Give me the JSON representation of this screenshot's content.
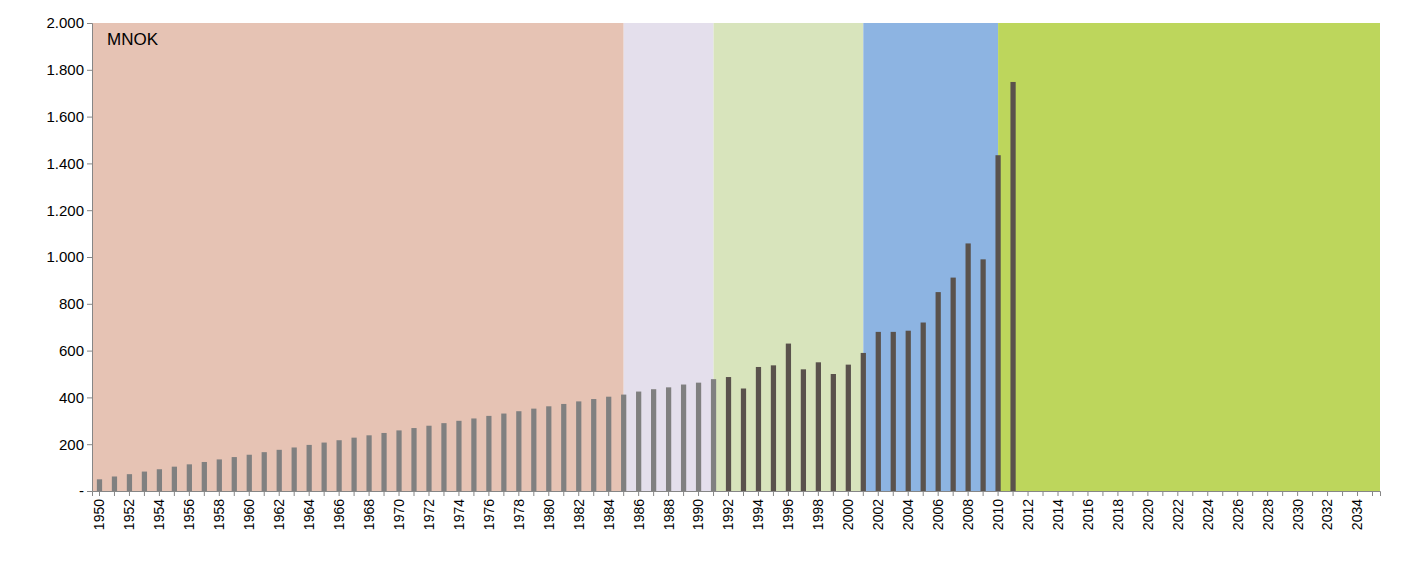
{
  "chart_data": {
    "type": "bar",
    "ylabel": "MNOK",
    "categories": [
      "1950",
      null,
      "1952",
      null,
      "1954",
      null,
      "1956",
      null,
      "1958",
      null,
      "1960",
      null,
      "1962",
      null,
      "1964",
      null,
      "1966",
      null,
      "1968",
      null,
      "1970",
      null,
      "1972",
      null,
      "1974",
      null,
      "1976",
      null,
      "1978",
      null,
      "1980",
      null,
      "1982",
      null,
      "1984",
      null,
      "1986",
      null,
      "1988",
      null,
      "1990",
      null,
      "1992",
      null,
      "1994",
      null,
      "1996",
      null,
      "1998",
      null,
      "2000",
      null,
      "2002",
      null,
      "2004",
      null,
      "2006",
      null,
      "2008",
      null,
      "2010",
      null,
      "2012",
      null,
      "2014",
      null,
      "2016",
      null,
      "2018",
      null,
      "2020",
      null,
      "2022",
      null,
      "2024",
      null,
      "2026",
      null,
      "2028",
      null,
      "2030",
      null,
      "2032",
      null,
      "2034",
      null
    ],
    "values": [
      50,
      62,
      72,
      83,
      93,
      104,
      114,
      124,
      135,
      145,
      155,
      166,
      176,
      186,
      197,
      207,
      217,
      228,
      238,
      248,
      259,
      269,
      279,
      290,
      300,
      310,
      321,
      331,
      341,
      352,
      362,
      372,
      383,
      393,
      403,
      412,
      425,
      435,
      443,
      455,
      463,
      478,
      487,
      438,
      530,
      537,
      630,
      520,
      550,
      500,
      540,
      590,
      680,
      680,
      685,
      720,
      850,
      912,
      1058,
      990,
      1435,
      1748,
      null,
      null,
      null,
      null,
      null,
      null,
      null,
      null,
      null,
      null,
      null,
      null,
      null,
      null,
      null,
      null,
      null,
      null,
      null,
      null,
      null,
      null,
      null,
      null
    ],
    "colors": [
      "#808080",
      "#808080",
      "#808080",
      "#808080",
      "#808080",
      "#808080",
      "#808080",
      "#808080",
      "#808080",
      "#808080",
      "#808080",
      "#808080",
      "#808080",
      "#808080",
      "#808080",
      "#808080",
      "#808080",
      "#808080",
      "#808080",
      "#808080",
      "#808080",
      "#808080",
      "#808080",
      "#808080",
      "#808080",
      "#808080",
      "#808080",
      "#808080",
      "#808080",
      "#808080",
      "#808080",
      "#808080",
      "#808080",
      "#808080",
      "#808080",
      "#808080",
      "#808080",
      "#808080",
      "#808080",
      "#808080",
      "#808080",
      "#808080",
      "#5a524c",
      "#5a524c",
      "#5a524c",
      "#5a524c",
      "#5a524c",
      "#5a524c",
      "#5a524c",
      "#5a524c",
      "#5a524c",
      "#5a524c",
      "#5a524c",
      "#5a524c",
      "#5a524c",
      "#5a524c",
      "#5a524c",
      "#5a524c",
      "#5a524c",
      "#5a524c",
      "#5a524c",
      "#5a524c",
      null,
      null,
      null,
      null,
      null,
      null,
      null,
      null,
      null,
      null,
      null,
      null,
      null,
      null,
      null,
      null,
      null,
      null,
      null,
      null,
      null,
      null,
      null,
      null
    ],
    "ylim": [
      0,
      2000
    ],
    "yticks": [
      {
        "value": 0,
        "label": "-"
      },
      200,
      400,
      600,
      800,
      {
        "value": 1000,
        "label": "1.000"
      },
      {
        "value": 1200,
        "label": "1.200"
      },
      {
        "value": 1400,
        "label": "1.400"
      },
      {
        "value": 1600,
        "label": "1.600"
      },
      {
        "value": 1800,
        "label": "1.800"
      },
      {
        "value": 2000,
        "label": "2.000"
      }
    ],
    "grid": false,
    "bands": [
      {
        "from": 0,
        "to": 35,
        "color": "#e6c3b4"
      },
      {
        "from": 35,
        "to": 41,
        "color": "#e4dfec"
      },
      {
        "from": 41,
        "to": 51,
        "color": "#d8e4bc"
      },
      {
        "from": 51,
        "to": 60,
        "color": "#8db4e2"
      },
      {
        "from": 60,
        "to": 85,
        "color": "#bdd65c"
      }
    ]
  }
}
